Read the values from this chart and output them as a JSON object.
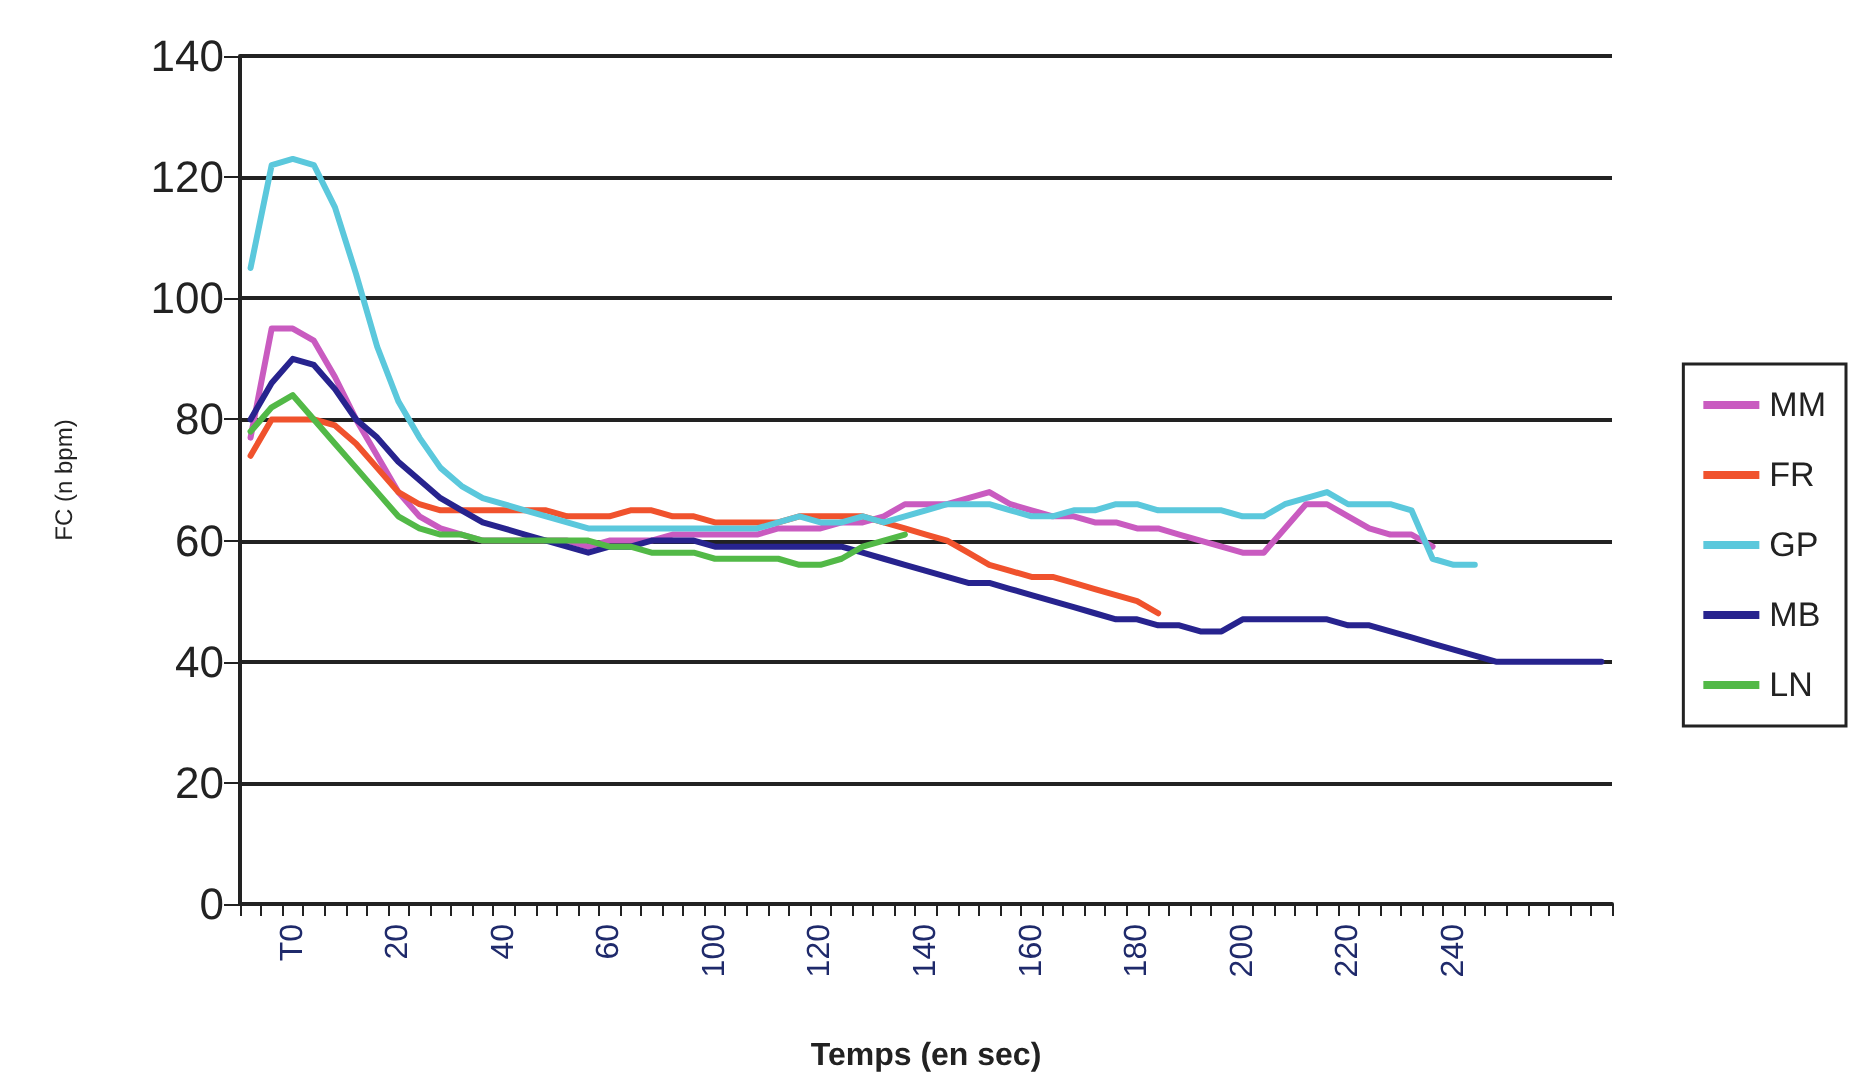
{
  "chart_data": {
    "type": "line",
    "xlabel": "Temps (en sec)",
    "ylabel": "FC (n bpm)",
    "categories": [
      null,
      null,
      "T0",
      null,
      null,
      null,
      null,
      "20",
      null,
      null,
      null,
      null,
      "40",
      null,
      null,
      null,
      null,
      "60",
      null,
      null,
      null,
      null,
      "100",
      null,
      null,
      null,
      null,
      "120",
      null,
      null,
      null,
      null,
      "140",
      null,
      null,
      null,
      null,
      "160",
      null,
      null,
      null,
      null,
      "180",
      null,
      null,
      null,
      null,
      "200",
      null,
      null,
      null,
      null,
      "220",
      null,
      null,
      null,
      null,
      "240",
      null,
      null,
      null,
      null,
      null,
      null,
      null
    ],
    "ylim": [
      0,
      140
    ],
    "yticks": [
      0,
      20,
      40,
      60,
      80,
      100,
      120,
      140
    ],
    "grid": "y",
    "legend": "right",
    "marker": "none",
    "line_style": "solid",
    "series": [
      {
        "name": "MM",
        "color": "#c95bc0",
        "values": [
          77,
          95,
          95,
          93,
          87,
          80,
          74,
          68,
          64,
          62,
          61,
          60,
          60,
          60,
          60,
          60,
          59,
          60,
          60,
          60,
          61,
          61,
          61,
          61,
          61,
          62,
          62,
          62,
          63,
          63,
          64,
          66,
          66,
          66,
          67,
          68,
          66,
          65,
          64,
          64,
          63,
          63,
          62,
          62,
          61,
          60,
          59,
          58,
          58,
          62,
          66,
          66,
          64,
          62,
          61,
          61,
          59,
          null,
          null,
          null,
          null,
          null,
          null,
          null,
          null
        ]
      },
      {
        "name": "FR",
        "color": "#f0522d",
        "values": [
          74,
          80,
          80,
          80,
          79,
          76,
          72,
          68,
          66,
          65,
          65,
          65,
          65,
          65,
          65,
          64,
          64,
          64,
          65,
          65,
          64,
          64,
          63,
          63,
          63,
          63,
          64,
          64,
          64,
          64,
          63,
          62,
          61,
          60,
          58,
          56,
          55,
          54,
          54,
          53,
          52,
          51,
          50,
          48,
          null,
          null,
          null,
          null,
          null,
          null,
          null,
          null,
          null,
          null,
          null,
          null,
          null,
          null,
          null,
          null,
          null,
          null,
          null,
          null,
          null
        ]
      },
      {
        "name": "GP",
        "color": "#5bc8dc",
        "values": [
          105,
          122,
          123,
          122,
          115,
          104,
          92,
          83,
          77,
          72,
          69,
          67,
          66,
          65,
          64,
          63,
          62,
          62,
          62,
          62,
          62,
          62,
          62,
          62,
          62,
          63,
          64,
          63,
          63,
          64,
          63,
          64,
          65,
          66,
          66,
          66,
          65,
          64,
          64,
          65,
          65,
          66,
          66,
          65,
          65,
          65,
          65,
          64,
          64,
          66,
          67,
          68,
          66,
          66,
          66,
          65,
          57,
          56,
          56,
          null,
          null,
          null,
          null,
          null,
          null
        ]
      },
      {
        "name": "MB",
        "color": "#27238e",
        "values": [
          80,
          86,
          90,
          89,
          85,
          80,
          77,
          73,
          70,
          67,
          65,
          63,
          62,
          61,
          60,
          59,
          58,
          59,
          59,
          60,
          60,
          60,
          59,
          59,
          59,
          59,
          59,
          59,
          59,
          58,
          57,
          56,
          55,
          54,
          53,
          53,
          52,
          51,
          50,
          49,
          48,
          47,
          47,
          46,
          46,
          45,
          45,
          47,
          47,
          47,
          47,
          47,
          46,
          46,
          45,
          44,
          43,
          42,
          41,
          40,
          40,
          40,
          40,
          40,
          40
        ]
      },
      {
        "name": "LN",
        "color": "#52b947",
        "values": [
          78,
          82,
          84,
          80,
          76,
          72,
          68,
          64,
          62,
          61,
          61,
          60,
          60,
          60,
          60,
          60,
          60,
          59,
          59,
          58,
          58,
          58,
          57,
          57,
          57,
          57,
          56,
          56,
          57,
          59,
          60,
          61,
          null,
          null,
          null,
          null,
          null,
          null,
          null,
          null,
          null,
          null,
          null,
          null,
          null,
          null,
          null,
          null,
          null,
          null,
          null,
          null,
          null,
          null,
          null,
          null,
          null,
          null,
          null,
          null,
          null,
          null,
          null,
          null,
          null
        ]
      }
    ]
  }
}
